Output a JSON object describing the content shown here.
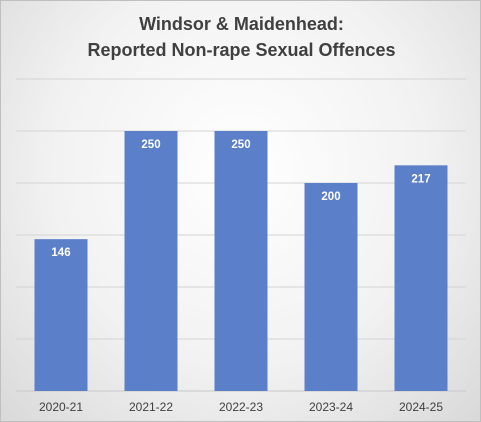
{
  "chart_data": {
    "type": "bar",
    "title_line1": "Windsor & Maidenhead:",
    "title_line2": "Reported Non-rape Sexual Offences",
    "categories": [
      "2020-21",
      "2021-22",
      "2022-23",
      "2023-24",
      "2024-25"
    ],
    "values": [
      146,
      250,
      250,
      200,
      217
    ],
    "ylim": [
      0,
      300
    ],
    "ytick_step": 50,
    "y_tick_labels_visible": false,
    "grid": true,
    "bar_color": "#5b7fc9",
    "data_labels": true
  }
}
